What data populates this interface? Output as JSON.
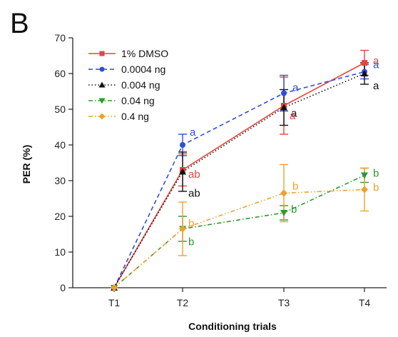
{
  "panel_label": "B",
  "chart_data": {
    "type": "line",
    "categories": [
      "T1",
      "T2",
      "T3",
      "T4"
    ],
    "xlabel": "Conditioning trials",
    "ylabel": "PER (%)",
    "ylim": [
      0,
      70
    ],
    "yticks": [
      0,
      10,
      20,
      30,
      40,
      50,
      60,
      70
    ],
    "grid": false,
    "legend_position": "top-left",
    "error_bars": true,
    "series": [
      {
        "name": "1% DMSO",
        "color": "#e8453c",
        "dash": "solid",
        "marker": "square",
        "values": [
          0,
          33,
          51,
          63
        ],
        "err": [
          0,
          4.5,
          8,
          3.5
        ],
        "labels": [
          "",
          "ab",
          "a",
          "a"
        ]
      },
      {
        "name": "0.0004 ng",
        "color": "#2e4fd8",
        "dash": "dash",
        "marker": "circle",
        "values": [
          0,
          40,
          54.5,
          60.5
        ],
        "err": [
          0,
          3,
          5,
          2
        ],
        "labels": [
          "",
          "a",
          "a",
          "a"
        ]
      },
      {
        "name": "0.004 ng",
        "color": "#111111",
        "dash": "dot",
        "marker": "triangle-up",
        "values": [
          0,
          32.5,
          50.5,
          60
        ],
        "err": [
          0,
          5.5,
          5,
          3
        ],
        "labels": [
          "",
          "ab",
          "a",
          "a"
        ]
      },
      {
        "name": "0.04 ng",
        "color": "#2d9a2d",
        "dash": "dashdot",
        "marker": "triangle-down",
        "values": [
          0,
          16.5,
          21,
          31.5
        ],
        "err": [
          0,
          3.5,
          2,
          2
        ],
        "labels": [
          "",
          "b",
          "b",
          "b"
        ]
      },
      {
        "name": "0.4 ng",
        "color": "#f0a030",
        "dash": "dashdotdot",
        "marker": "diamond",
        "values": [
          0,
          16.5,
          26.5,
          27.5
        ],
        "err": [
          0,
          7.5,
          8,
          6
        ],
        "labels": [
          "",
          "b",
          "b",
          "b"
        ]
      }
    ]
  }
}
